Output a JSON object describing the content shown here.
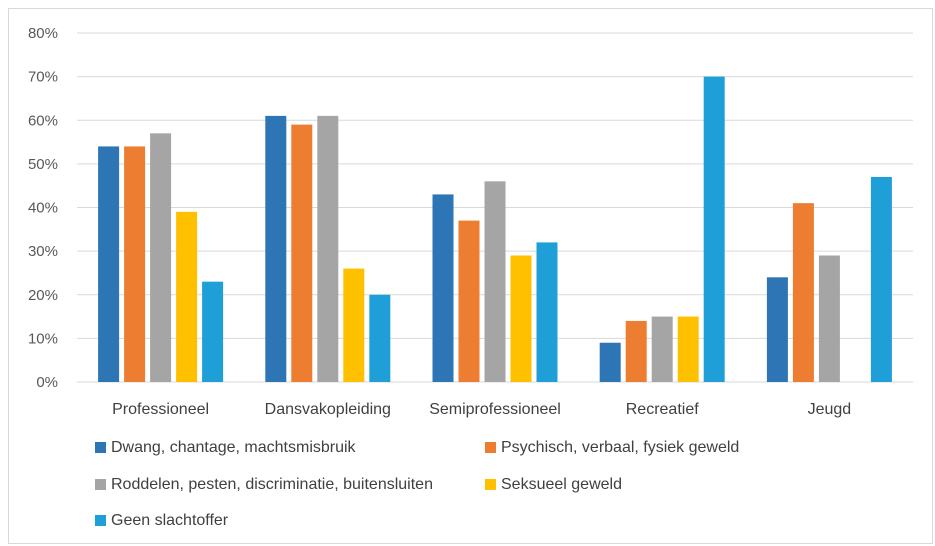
{
  "chart_data": {
    "type": "bar",
    "title": "",
    "xlabel": "",
    "ylabel": "",
    "ylim": [
      0,
      80
    ],
    "yticks": [
      "0%",
      "10%",
      "20%",
      "30%",
      "40%",
      "50%",
      "60%",
      "70%",
      "80%"
    ],
    "grid": true,
    "legend_position": "bottom",
    "categories": [
      "Professioneel",
      "Dansvakopleiding",
      "Semiprofessioneel",
      "Recreatief",
      "Jeugd"
    ],
    "series": [
      {
        "name": "Dwang, chantage, machtsmisbruik",
        "color": "#2e75b6",
        "values": [
          54,
          61,
          43,
          9,
          24
        ]
      },
      {
        "name": "Psychisch, verbaal, fysiek geweld",
        "color": "#ed7d31",
        "values": [
          54,
          59,
          37,
          14,
          41
        ]
      },
      {
        "name": "Roddelen, pesten, discriminatie, buitensluiten",
        "color": "#a5a5a5",
        "values": [
          57,
          61,
          46,
          15,
          29
        ]
      },
      {
        "name": "Seksueel geweld",
        "color": "#ffc000",
        "values": [
          39,
          26,
          29,
          15,
          0
        ]
      },
      {
        "name": "Geen slachtoffer",
        "color": "#1f9fd8",
        "values": [
          23,
          20,
          32,
          70,
          47
        ]
      }
    ]
  }
}
